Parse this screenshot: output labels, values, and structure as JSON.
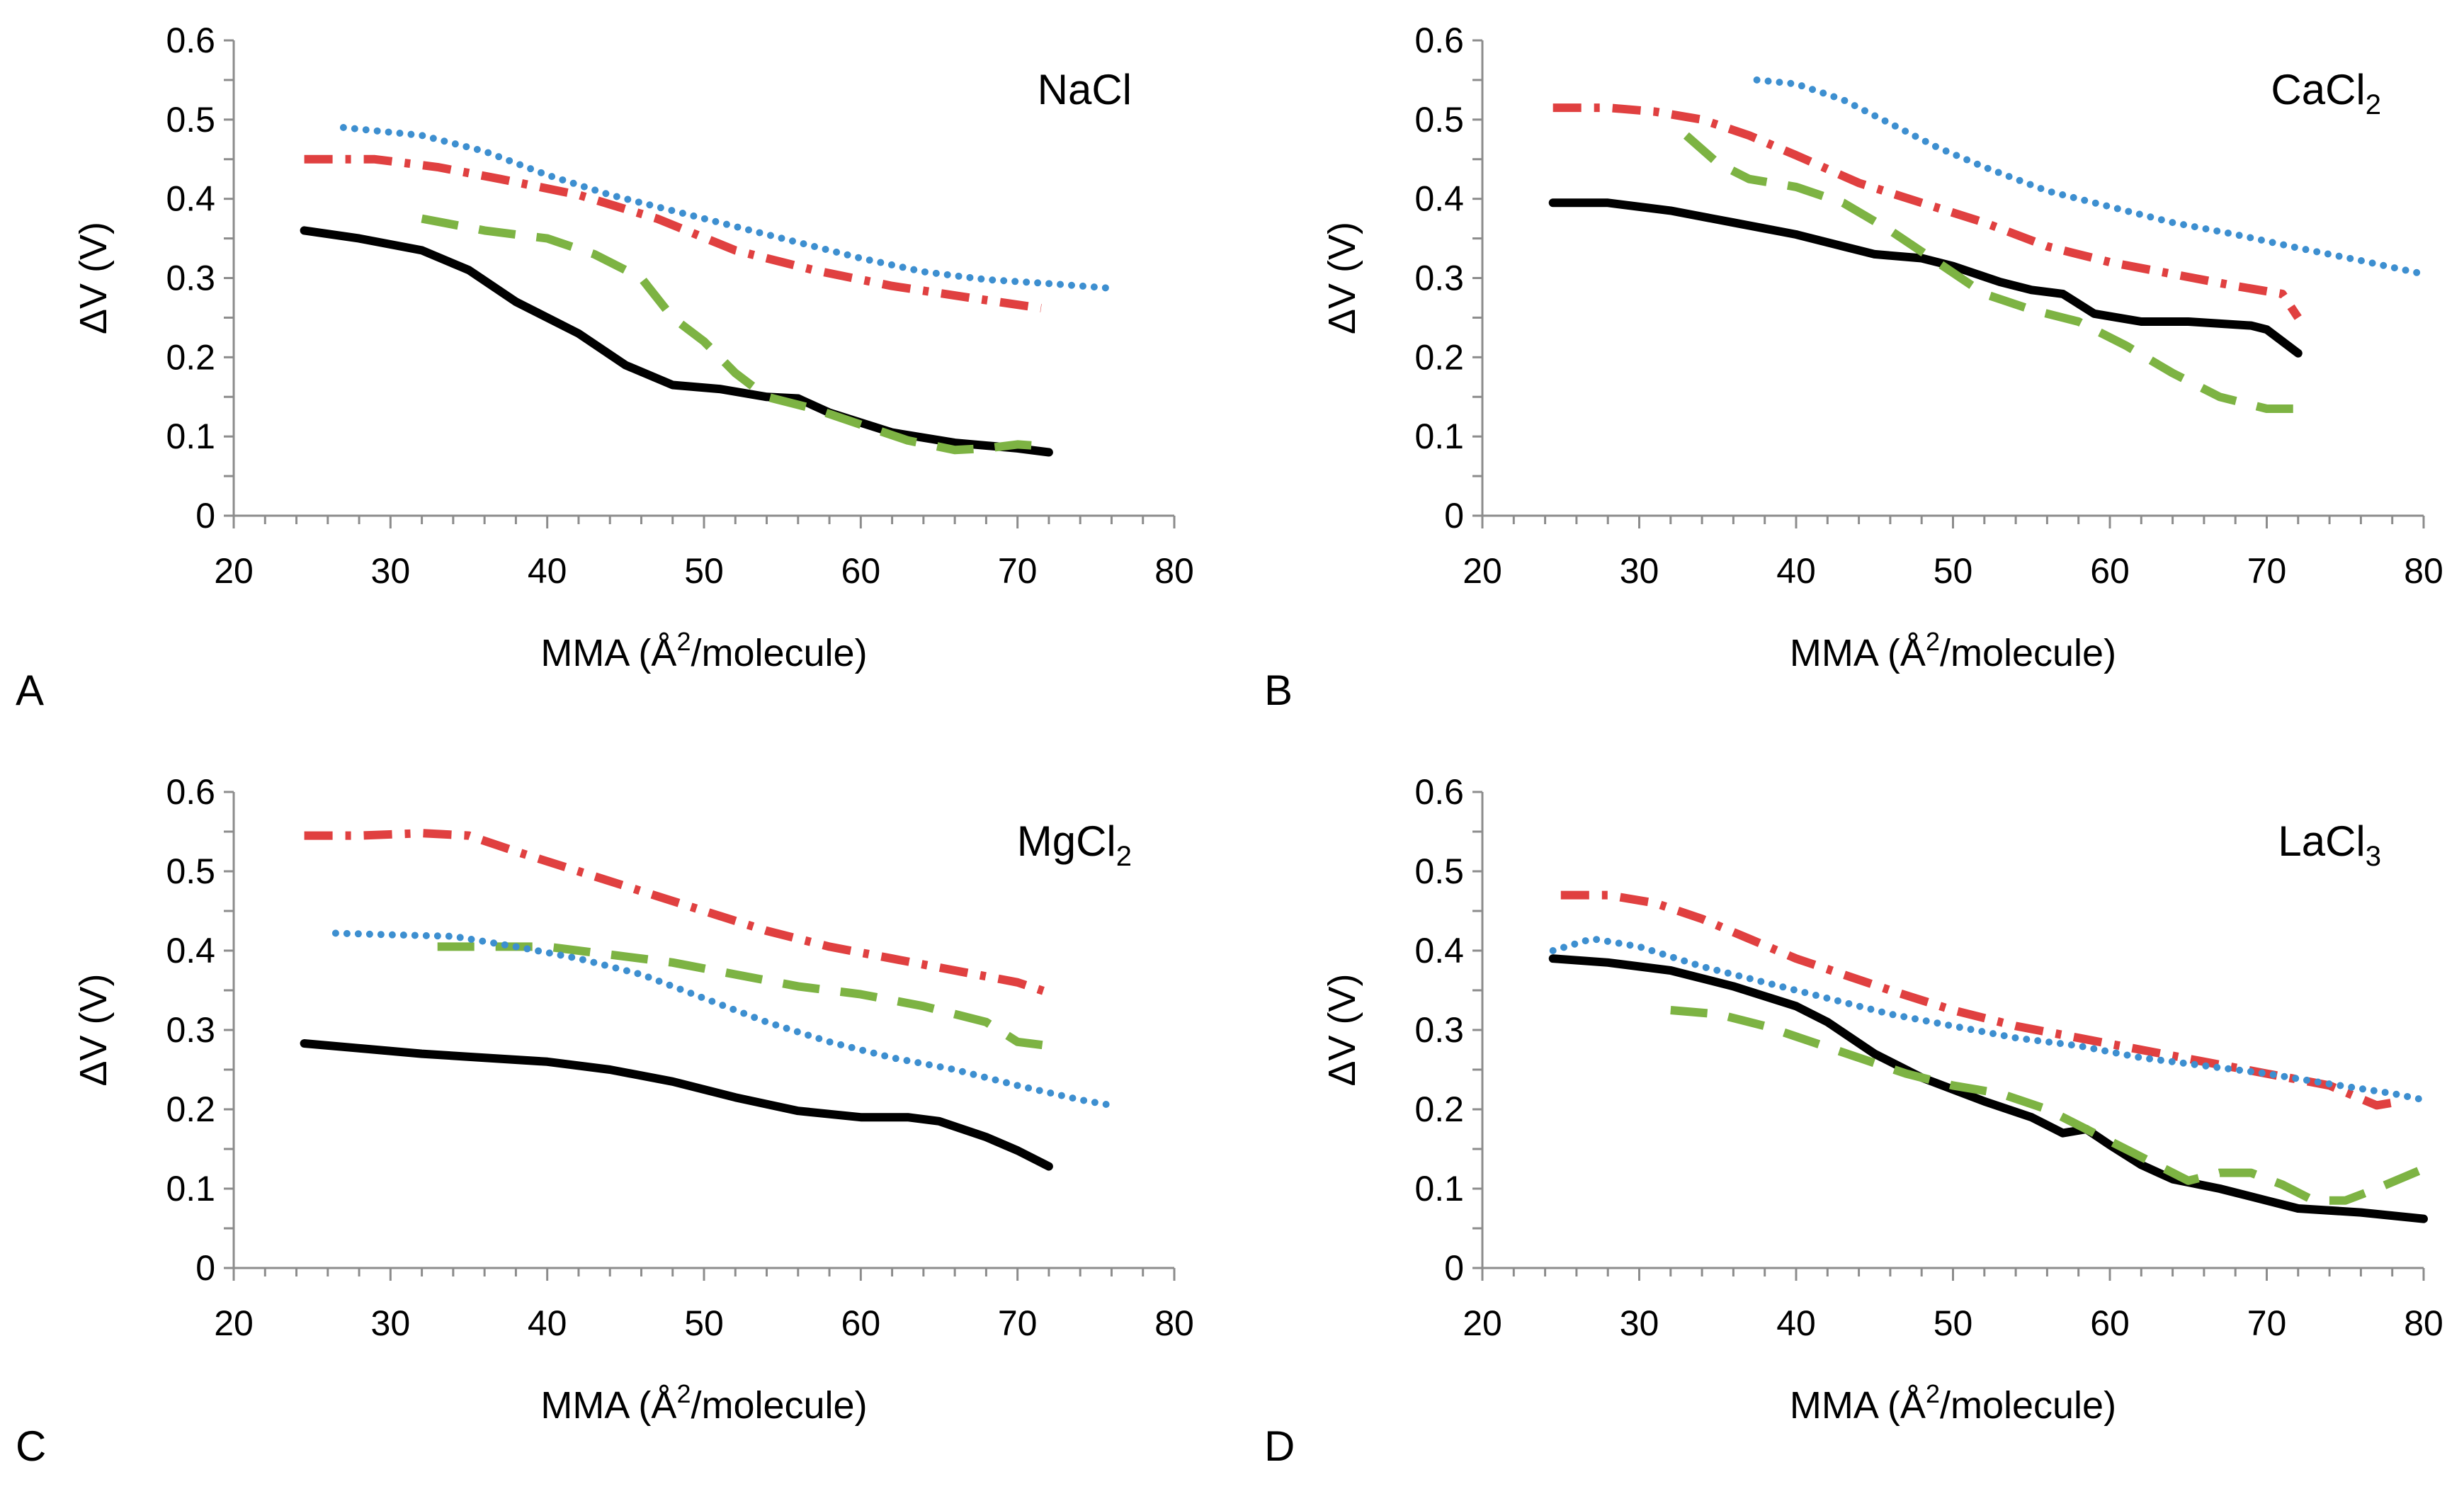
{
  "chart_data": [
    {
      "type": "line",
      "panel": "A",
      "label_main": "NaCl",
      "label_sub": "",
      "xlabel_pre": "MMA (Å",
      "xlabel_sup": "2",
      "xlabel_post": "/molecule)",
      "ylabel": "ΔV (V)",
      "xlim": [
        20,
        80
      ],
      "ylim": [
        0,
        0.6
      ],
      "xticks": [
        "20",
        "30",
        "40",
        "50",
        "60",
        "70",
        "80"
      ],
      "yticks": [
        "0",
        "0.1",
        "0.2",
        "0.3",
        "0.4",
        "0.5",
        "0.6"
      ],
      "series": [
        {
          "style": "solid",
          "color": "#000000",
          "x": [
            24.5,
            28,
            32,
            35,
            38,
            42,
            45,
            48,
            51,
            54,
            56,
            58,
            62,
            66,
            70,
            72
          ],
          "y": [
            0.36,
            0.35,
            0.335,
            0.31,
            0.27,
            0.23,
            0.19,
            0.165,
            0.16,
            0.15,
            0.148,
            0.13,
            0.105,
            0.092,
            0.085,
            0.08
          ]
        },
        {
          "style": "dashed",
          "color": "#7db343",
          "x": [
            32,
            36,
            40,
            43,
            46,
            48,
            50,
            52,
            54,
            57,
            60,
            63,
            66,
            68,
            70,
            71.5
          ],
          "y": [
            0.375,
            0.36,
            0.35,
            0.33,
            0.3,
            0.25,
            0.22,
            0.18,
            0.15,
            0.135,
            0.115,
            0.095,
            0.083,
            0.085,
            0.09,
            0.088
          ]
        },
        {
          "style": "dashdot",
          "color": "#e04040",
          "x": [
            24.5,
            29,
            33,
            37,
            42,
            47,
            52,
            57,
            62,
            67,
            71.5
          ],
          "y": [
            0.45,
            0.45,
            0.44,
            0.425,
            0.405,
            0.375,
            0.335,
            0.31,
            0.29,
            0.275,
            0.262
          ]
        },
        {
          "style": "dotted",
          "color": "#3d8fd0",
          "x": [
            27,
            32,
            36,
            40,
            44,
            48,
            52,
            56,
            60,
            64,
            68,
            72,
            76
          ],
          "y": [
            0.49,
            0.48,
            0.46,
            0.43,
            0.405,
            0.385,
            0.365,
            0.345,
            0.325,
            0.308,
            0.298,
            0.293,
            0.287
          ]
        }
      ]
    },
    {
      "type": "line",
      "panel": "B",
      "label_main": "CaCl",
      "label_sub": "2",
      "xlabel_pre": "MMA (Å",
      "xlabel_sup": "2",
      "xlabel_post": "/molecule)",
      "ylabel": "ΔV (V)",
      "xlim": [
        20,
        80
      ],
      "ylim": [
        0,
        0.6
      ],
      "xticks": [
        "20",
        "30",
        "40",
        "50",
        "60",
        "70",
        "80"
      ],
      "yticks": [
        "0",
        "0.1",
        "0.2",
        "0.3",
        "0.4",
        "0.5",
        "0.6"
      ],
      "series": [
        {
          "style": "solid",
          "color": "#000000",
          "x": [
            24.5,
            28,
            32,
            36,
            40,
            43,
            45,
            48,
            50,
            53,
            55,
            57,
            59,
            62,
            65,
            69,
            70,
            72
          ],
          "y": [
            0.395,
            0.395,
            0.385,
            0.37,
            0.355,
            0.34,
            0.33,
            0.325,
            0.315,
            0.295,
            0.285,
            0.28,
            0.255,
            0.245,
            0.245,
            0.24,
            0.235,
            0.205
          ]
        },
        {
          "style": "dashed",
          "color": "#7db343",
          "x": [
            33,
            35,
            37,
            40,
            43,
            46,
            49,
            52,
            55,
            58,
            61,
            64,
            67,
            70,
            72
          ],
          "y": [
            0.48,
            0.445,
            0.425,
            0.415,
            0.395,
            0.36,
            0.32,
            0.28,
            0.26,
            0.245,
            0.215,
            0.18,
            0.15,
            0.135,
            0.135
          ]
        },
        {
          "style": "dashdot",
          "color": "#e04040",
          "x": [
            24.5,
            28,
            31,
            34,
            37,
            40,
            44,
            48,
            52,
            56,
            60,
            64,
            68,
            71,
            72
          ],
          "y": [
            0.515,
            0.515,
            0.51,
            0.5,
            0.48,
            0.455,
            0.42,
            0.395,
            0.37,
            0.34,
            0.32,
            0.305,
            0.29,
            0.28,
            0.25
          ]
        },
        {
          "style": "dotted",
          "color": "#3d8fd0",
          "x": [
            37.5,
            40,
            43,
            46,
            49,
            52,
            56,
            60,
            64,
            68,
            72,
            76,
            80
          ],
          "y": [
            0.55,
            0.545,
            0.525,
            0.495,
            0.465,
            0.44,
            0.41,
            0.39,
            0.37,
            0.355,
            0.338,
            0.322,
            0.305
          ]
        }
      ]
    },
    {
      "type": "line",
      "panel": "C",
      "label_main": "MgCl",
      "label_sub": "2",
      "xlabel_pre": "MMA (Å",
      "xlabel_sup": "2",
      "xlabel_post": "/molecule)",
      "ylabel": "ΔV (V)",
      "xlim": [
        20,
        80
      ],
      "ylim": [
        0,
        0.6
      ],
      "xticks": [
        "20",
        "30",
        "40",
        "50",
        "60",
        "70",
        "80"
      ],
      "yticks": [
        "0",
        "0.1",
        "0.2",
        "0.3",
        "0.4",
        "0.5",
        "0.6"
      ],
      "series": [
        {
          "style": "solid",
          "color": "#000000",
          "x": [
            24.5,
            28,
            32,
            36,
            40,
            44,
            48,
            52,
            56,
            60,
            63,
            65,
            68,
            70,
            72
          ],
          "y": [
            0.283,
            0.277,
            0.27,
            0.265,
            0.26,
            0.25,
            0.235,
            0.215,
            0.198,
            0.19,
            0.19,
            0.185,
            0.165,
            0.148,
            0.128
          ]
        },
        {
          "style": "dashed",
          "color": "#7db343",
          "x": [
            33,
            36,
            40,
            44,
            48,
            52,
            56,
            60,
            64,
            68,
            70,
            72
          ],
          "y": [
            0.405,
            0.405,
            0.405,
            0.395,
            0.385,
            0.37,
            0.355,
            0.345,
            0.33,
            0.31,
            0.285,
            0.28
          ]
        },
        {
          "style": "dashdot",
          "color": "#e04040",
          "x": [
            24.5,
            28,
            32,
            35,
            38,
            42,
            46,
            50,
            54,
            58,
            62,
            66,
            70,
            72
          ],
          "y": [
            0.545,
            0.545,
            0.548,
            0.545,
            0.525,
            0.5,
            0.475,
            0.45,
            0.425,
            0.405,
            0.39,
            0.375,
            0.36,
            0.347
          ]
        },
        {
          "style": "dotted",
          "color": "#3d8fd0",
          "x": [
            26.5,
            30,
            34,
            38,
            42,
            46,
            50,
            54,
            58,
            62,
            66,
            70,
            74,
            76
          ],
          "y": [
            0.422,
            0.42,
            0.418,
            0.405,
            0.39,
            0.37,
            0.34,
            0.31,
            0.285,
            0.265,
            0.25,
            0.23,
            0.212,
            0.205
          ]
        }
      ]
    },
    {
      "type": "line",
      "panel": "D",
      "label_main": "LaCl",
      "label_sub": "3",
      "xlabel_pre": "MMA (Å",
      "xlabel_sup": "2",
      "xlabel_post": "/molecule)",
      "ylabel": "ΔV (V)",
      "xlim": [
        20,
        80
      ],
      "ylim": [
        0,
        0.6
      ],
      "xticks": [
        "20",
        "30",
        "40",
        "50",
        "60",
        "70",
        "80"
      ],
      "yticks": [
        "0",
        "0.1",
        "0.2",
        "0.3",
        "0.4",
        "0.5",
        "0.6"
      ],
      "series": [
        {
          "style": "solid",
          "color": "#000000",
          "x": [
            24.5,
            28,
            32,
            36,
            40,
            42,
            45,
            48,
            52,
            55,
            57,
            58.5,
            60,
            62,
            64,
            67,
            70,
            72,
            76,
            80
          ],
          "y": [
            0.39,
            0.385,
            0.375,
            0.355,
            0.33,
            0.31,
            0.27,
            0.24,
            0.21,
            0.19,
            0.17,
            0.175,
            0.155,
            0.13,
            0.112,
            0.1,
            0.085,
            0.075,
            0.07,
            0.062
          ]
        },
        {
          "style": "dashed",
          "color": "#7db343",
          "x": [
            32,
            35,
            38,
            41,
            44,
            47,
            50,
            53,
            56,
            59,
            62,
            65,
            67,
            69,
            71,
            73,
            75,
            77,
            80
          ],
          "y": [
            0.325,
            0.32,
            0.305,
            0.285,
            0.265,
            0.245,
            0.23,
            0.22,
            0.2,
            0.17,
            0.14,
            0.11,
            0.12,
            0.12,
            0.105,
            0.085,
            0.085,
            0.1,
            0.125
          ]
        },
        {
          "style": "dashdot",
          "color": "#e04040",
          "x": [
            25,
            28,
            31,
            34,
            37,
            40,
            43,
            46,
            50,
            54,
            58,
            62,
            66,
            70,
            74,
            77,
            78.5
          ],
          "y": [
            0.47,
            0.47,
            0.46,
            0.44,
            0.415,
            0.39,
            0.37,
            0.35,
            0.325,
            0.305,
            0.29,
            0.275,
            0.26,
            0.245,
            0.23,
            0.205,
            0.21
          ]
        },
        {
          "style": "dotted",
          "color": "#3d8fd0",
          "x": [
            24.5,
            27,
            30,
            34,
            38,
            42,
            46,
            50,
            54,
            58,
            62,
            66,
            70,
            74,
            78,
            80
          ],
          "y": [
            0.4,
            0.415,
            0.405,
            0.38,
            0.36,
            0.34,
            0.32,
            0.305,
            0.29,
            0.28,
            0.265,
            0.255,
            0.245,
            0.232,
            0.22,
            0.212
          ]
        }
      ]
    }
  ]
}
